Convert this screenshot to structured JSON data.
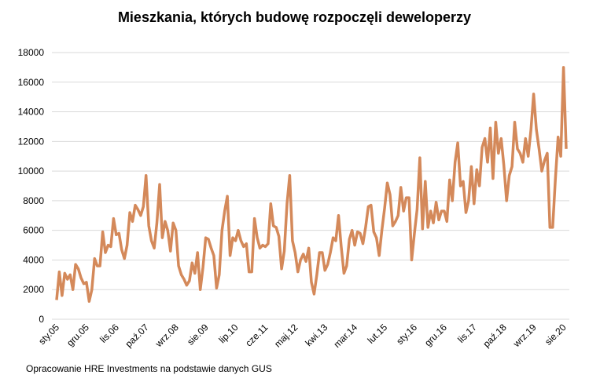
{
  "chart_data": {
    "type": "line",
    "title": "Mieszkania, których budowę rozpoczęli deweloperzy",
    "footnote": "Opracowanie HRE Investments na podstawie danych GUS",
    "ylim": [
      0,
      18000
    ],
    "y_ticks": [
      0,
      2000,
      4000,
      6000,
      8000,
      10000,
      12000,
      14000,
      16000,
      18000
    ],
    "x_tick_labels": [
      "sty.05",
      "gru.05",
      "lis.06",
      "paź.07",
      "wrz.08",
      "sie.09",
      "lip.10",
      "cze.11",
      "maj.12",
      "kwi.13",
      "mar.14",
      "lut.15",
      "sty.16",
      "gru.16",
      "lis.17",
      "paź.18",
      "wrz.19",
      "sie.20"
    ],
    "x_tick_interval_months": 11,
    "grid": true,
    "legend": "none",
    "line_color": "#D4895A",
    "grid_color": "#D9D9D9",
    "series": [
      {
        "values": [
          1300,
          3200,
          1600,
          3100,
          2700,
          3000,
          2000,
          3700,
          3400,
          2800,
          2400,
          2500,
          1200,
          2000,
          4100,
          3600,
          3600,
          5900,
          4500,
          5000,
          4900,
          6800,
          5700,
          5800,
          4700,
          4100,
          5000,
          7200,
          6600,
          7700,
          7400,
          7000,
          7600,
          9700,
          6300,
          5300,
          4800,
          6500,
          9100,
          5500,
          6600,
          6000,
          4600,
          6500,
          6000,
          3600,
          3000,
          2700,
          2300,
          2600,
          3800,
          3100,
          4500,
          2000,
          3500,
          5500,
          5400,
          4800,
          4300,
          2100,
          3000,
          6000,
          7300,
          8300,
          4300,
          5500,
          5300,
          6000,
          5300,
          4900,
          5100,
          3200,
          3200,
          6800,
          5500,
          4800,
          5000,
          4900,
          5100,
          7800,
          6300,
          6200,
          5600,
          3400,
          4600,
          7800,
          9700,
          5300,
          4500,
          3200,
          4000,
          4400,
          3900,
          4800,
          2500,
          1700,
          3000,
          4500,
          4500,
          3300,
          3700,
          4500,
          5500,
          5300,
          7000,
          4900,
          3100,
          3600,
          5400,
          6000,
          5000,
          5900,
          5800,
          5100,
          6200,
          7600,
          7700,
          5900,
          5500,
          4300,
          6000,
          7500,
          9200,
          8400,
          6300,
          6600,
          7000,
          8900,
          7300,
          8200,
          8200,
          4000,
          5800,
          7400,
          10900,
          6100,
          9300,
          6200,
          7300,
          6500,
          7900,
          6700,
          7300,
          7300,
          6600,
          9400,
          8000,
          10600,
          11900,
          9000,
          9300,
          7200,
          8000,
          10300,
          7800,
          10100,
          9000,
          11600,
          12200,
          10600,
          12900,
          9500,
          13300,
          11200,
          12200,
          10400,
          8000,
          9700,
          10300,
          13300,
          11500,
          11200,
          10600,
          12200,
          11000,
          12800,
          15200,
          12800,
          11500,
          10000,
          10700,
          11200,
          6200,
          6200,
          9400,
          12300,
          11000,
          17000,
          11500
        ]
      }
    ]
  }
}
